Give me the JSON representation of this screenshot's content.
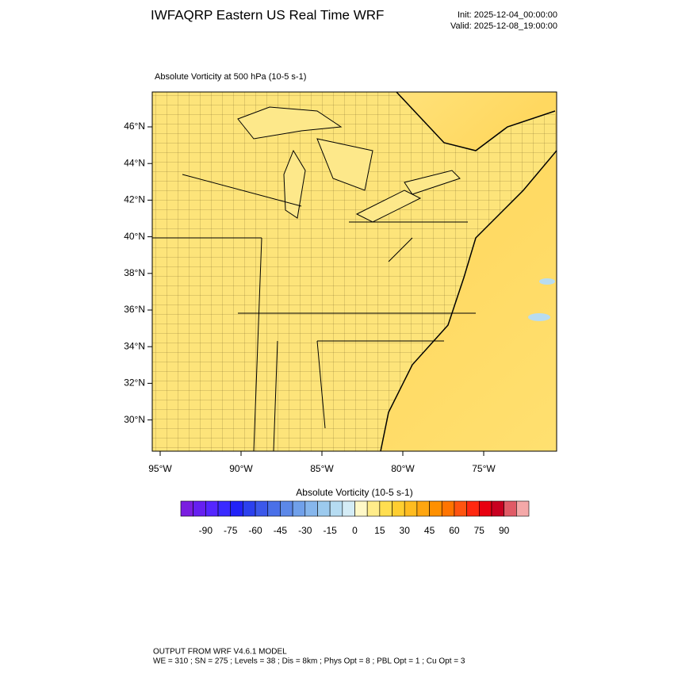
{
  "header": {
    "title": "IWFAQRP Eastern US Real Time WRF",
    "init": "Init: 2025-12-04_00:00:00",
    "valid": "Valid: 2025-12-08_19:00:00"
  },
  "map": {
    "title": "Absolute Vorticity at 500 hPa   (10-5 s-1)",
    "lat_labels": [
      "46°N",
      "44°N",
      "42°N",
      "40°N",
      "38°N",
      "36°N",
      "34°N",
      "32°N",
      "30°N"
    ],
    "lon_labels": [
      "95°W",
      "90°W",
      "85°W",
      "80°W",
      "75°W"
    ]
  },
  "colorbar": {
    "title": "Absolute Vorticity  (10-5 s-1)",
    "colors": [
      "#7a1ee0",
      "#6620f0",
      "#5526ff",
      "#3a2aff",
      "#2222f8",
      "#2c40ee",
      "#3c58ea",
      "#4a70e8",
      "#5c88e8",
      "#70a0ea",
      "#86b6ec",
      "#9ccaee",
      "#b6dcf2",
      "#d4ecf6",
      "#fff8c8",
      "#ffec8a",
      "#ffde50",
      "#ffce30",
      "#ffbc20",
      "#ffa610",
      "#ff9000",
      "#ff7400",
      "#ff5410",
      "#ff2810",
      "#e80010",
      "#c80020",
      "#e05a66",
      "#f4a8a8"
    ],
    "labels": [
      "-90",
      "-75",
      "-60",
      "-45",
      "-30",
      "-15",
      "0",
      "15",
      "30",
      "45",
      "60",
      "75",
      "90"
    ]
  },
  "footer": {
    "line1": "OUTPUT FROM WRF V4.6.1 MODEL",
    "line2": "WE = 310 ; SN = 275 ; Levels = 38 ; Dis = 8km ; Phys Opt = 8 ; PBL Opt = 1 ; Cu Opt = 3"
  }
}
